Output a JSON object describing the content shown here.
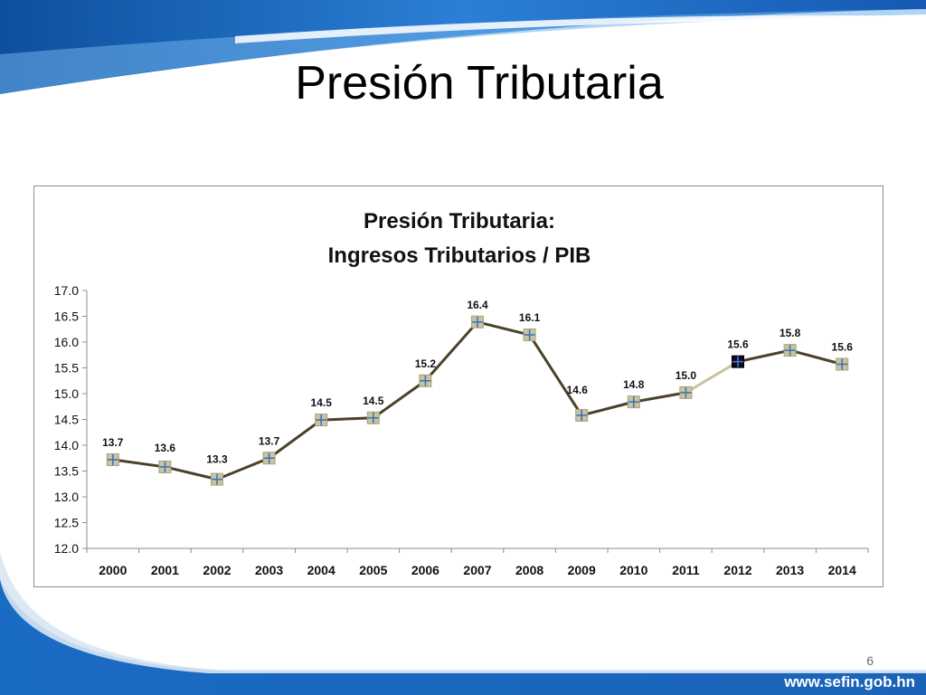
{
  "slide": {
    "title": "Presión Tributaria",
    "page_number": "6",
    "footer_url": "www.sefin.gob.hn"
  },
  "colors": {
    "header_blue": "#1f6fc2",
    "line": "#4a4128",
    "forecast_line": "#c9c3a0",
    "marker_fill": "#c9c3a0",
    "marker_cross": "#3a6fb8",
    "highlight_marker": "#0a0a1e"
  },
  "chart_data": {
    "type": "line",
    "title": "Presión Tributaria:",
    "subtitle": "Ingresos Tributarios / PIB",
    "xlabel": "",
    "ylabel": "",
    "ylim": [
      12.0,
      17.0
    ],
    "ytick_labels": [
      "12.0",
      "12.5",
      "13.0",
      "13.5",
      "14.0",
      "14.5",
      "15.0",
      "15.5",
      "16.0",
      "16.5",
      "17.0"
    ],
    "grid": false,
    "categories": [
      "2000",
      "2001",
      "2002",
      "2003",
      "2004",
      "2005",
      "2006",
      "2007",
      "2008",
      "2009",
      "2010",
      "2011",
      "2012",
      "2013",
      "2014"
    ],
    "values": [
      13.72,
      13.58,
      13.34,
      13.75,
      14.49,
      14.53,
      15.25,
      16.39,
      16.14,
      14.58,
      14.84,
      15.02,
      15.62,
      15.84,
      15.57
    ],
    "data_labels": [
      "13.7",
      "13.6",
      "13.3",
      "13.7",
      "14.5",
      "14.5",
      "15.2",
      "16.4",
      "16.1",
      "14.6",
      "14.8",
      "15.0",
      "15.6",
      "15.8",
      "15.6"
    ],
    "forecast_segment": [
      "2011",
      "2012"
    ],
    "highlight_point": "2012"
  }
}
